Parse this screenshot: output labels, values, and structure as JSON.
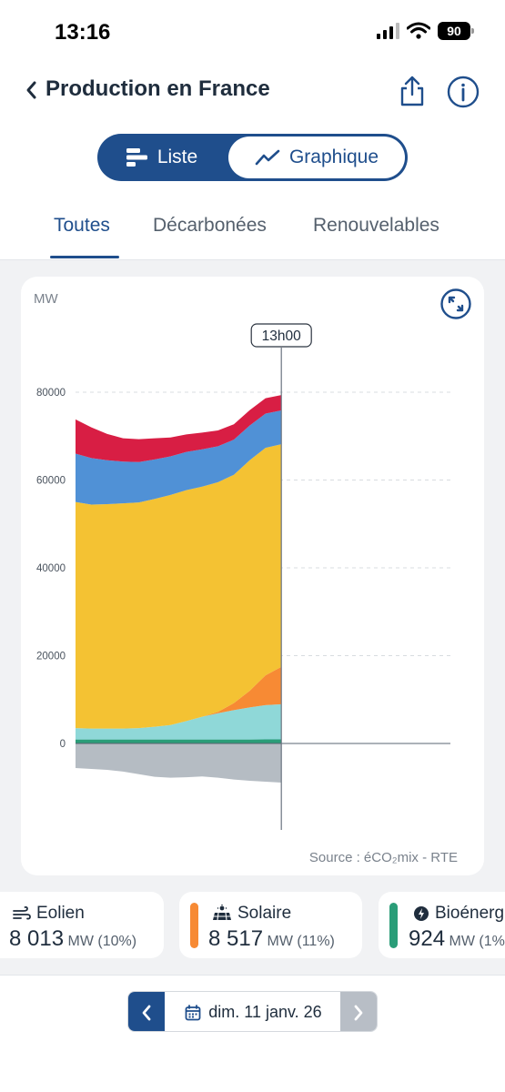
{
  "status": {
    "time": "13:16",
    "battery": "90"
  },
  "header": {
    "title": "Production en France"
  },
  "toggle": {
    "liste": "Liste",
    "graphique": "Graphique",
    "selected": "Graphique"
  },
  "tabs": [
    {
      "label": "Toutes",
      "active": true
    },
    {
      "label": "Décarbonées",
      "active": false
    },
    {
      "label": "Renouvelables",
      "active": false
    }
  ],
  "chart": {
    "source": "Source : éCO₂mix - RTE",
    "cursor_label": "13h00"
  },
  "legend": [
    {
      "name": "Eolien",
      "value": "8 013",
      "unit": "MW (10%)",
      "icon": "wind-icon",
      "color": "#8fd8d8"
    },
    {
      "name": "Solaire",
      "value": "8 517",
      "unit": "MW (11%)",
      "icon": "solar-panel-icon",
      "color": "#f78a34"
    },
    {
      "name": "Bioénerg",
      "value": "924",
      "unit": "MW (1%",
      "icon": "bolt-leaf-icon",
      "color": "#2a9d78"
    }
  ],
  "date_nav": {
    "label": "dim. 11 janv. 26"
  },
  "colors": {
    "primary": "#1f4e8c",
    "nucleaire": "#f4c233",
    "hydraulique": "#5091d6",
    "gaz": "#d81e44",
    "solaire": "#f78a34",
    "eolien": "#8fd8d8",
    "bioenergies": "#2a9d78",
    "echanges": "#b5bcc3"
  },
  "chart_data": {
    "type": "area",
    "ylabel": "MW",
    "ylim": [
      -10000,
      88000
    ],
    "yticks": [
      0,
      20000,
      40000,
      60000,
      80000
    ],
    "x_hours": [
      0,
      1,
      2,
      3,
      4,
      5,
      6,
      7,
      8,
      9,
      10,
      11,
      12,
      13
    ],
    "cursor_hour": 13,
    "series_stacked": [
      {
        "key": "bioenergies",
        "values": [
          900,
          900,
          900,
          900,
          900,
          900,
          900,
          900,
          900,
          900,
          900,
          900,
          924,
          924
        ]
      },
      {
        "key": "eolien",
        "values": [
          2600,
          2500,
          2500,
          2500,
          2600,
          2900,
          3300,
          4200,
          5200,
          6000,
          6700,
          7300,
          7800,
          8013
        ]
      },
      {
        "key": "solaire",
        "values": [
          0,
          0,
          0,
          0,
          0,
          0,
          0,
          0,
          0,
          300,
          1600,
          3800,
          6800,
          8517
        ]
      },
      {
        "key": "nucleaire",
        "values": [
          51500,
          51000,
          51100,
          51300,
          51400,
          51900,
          52400,
          52600,
          52400,
          52300,
          52000,
          52500,
          51800,
          50700
        ]
      },
      {
        "key": "hydraulique",
        "values": [
          11000,
          10600,
          10000,
          9500,
          9200,
          9000,
          8800,
          8700,
          8500,
          8200,
          8000,
          7900,
          7800,
          7700
        ]
      },
      {
        "key": "gaz",
        "values": [
          7800,
          7000,
          6000,
          5300,
          5200,
          4800,
          4300,
          4000,
          3800,
          3600,
          3500,
          3500,
          3500,
          3500
        ]
      }
    ],
    "negative": {
      "key": "echanges",
      "values": [
        -5600,
        -5800,
        -6000,
        -6400,
        -7000,
        -7600,
        -7800,
        -7700,
        -7500,
        -7800,
        -8200,
        -8500,
        -8700,
        -8900
      ]
    }
  }
}
